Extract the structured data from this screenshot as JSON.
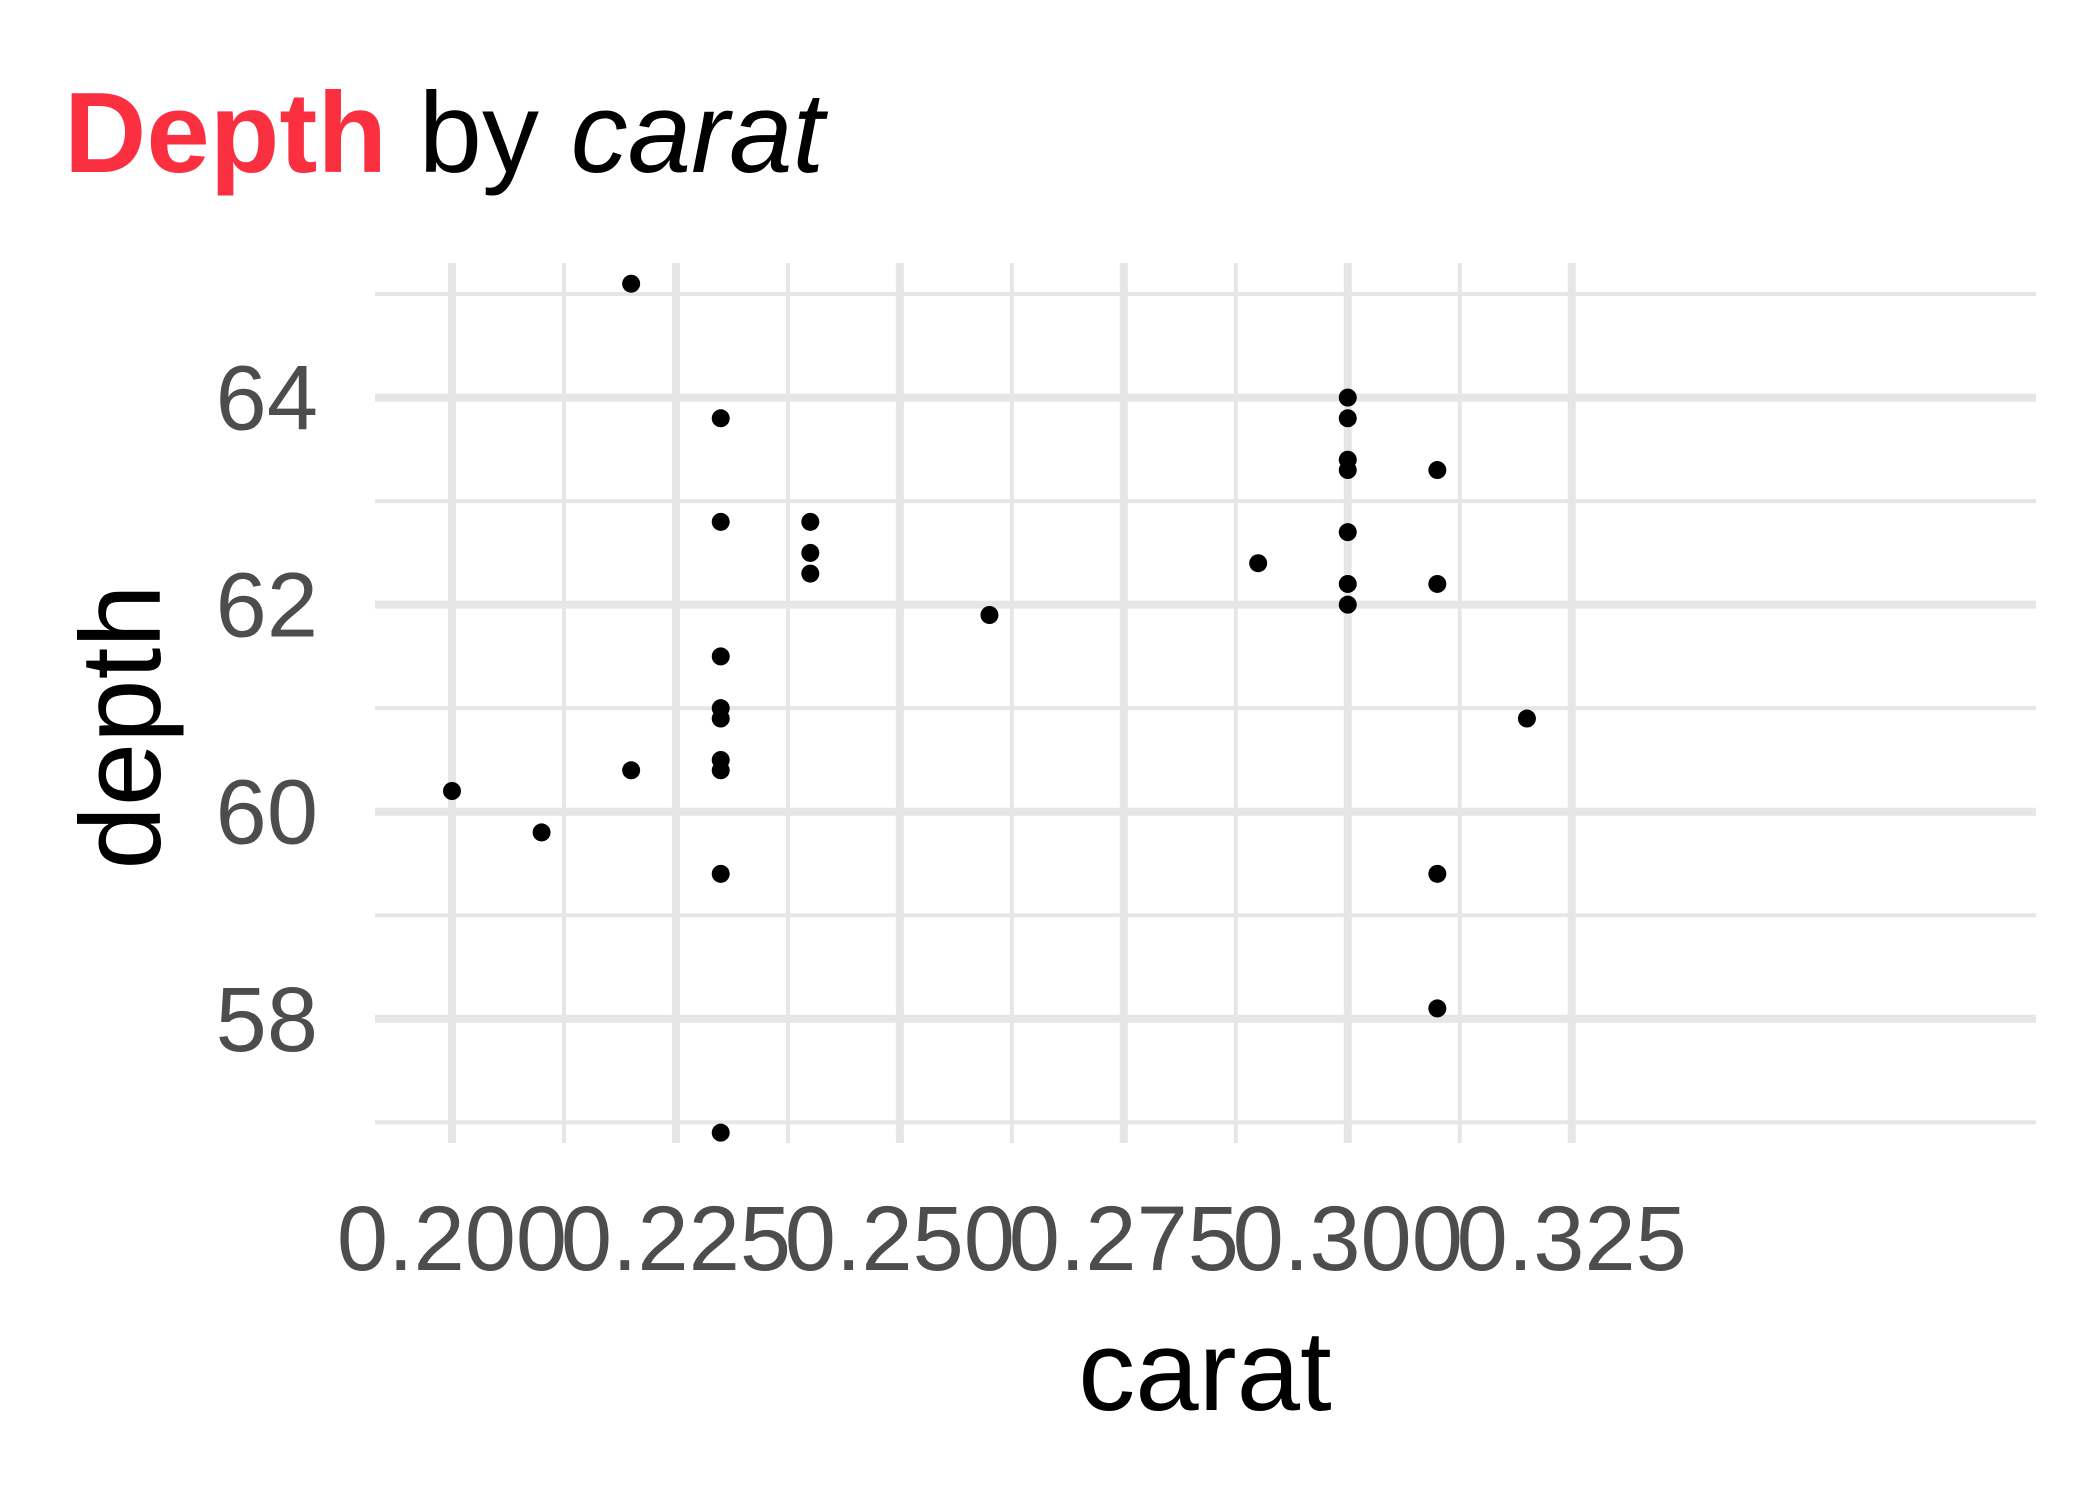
{
  "chart_data": {
    "type": "scatter",
    "title": {
      "part1": "Depth",
      "part2": " by ",
      "part3": "carat",
      "part1_color": "#fa3041"
    },
    "xlabel": "carat",
    "ylabel": "depth",
    "xlim": [
      0.1975,
      0.3225
    ],
    "ylim": [
      56.8,
      65.3
    ],
    "x_ticks": [
      0.2,
      0.225,
      0.25,
      0.275,
      0.3,
      0.325
    ],
    "x_tick_labels": [
      "0.200",
      "0.225",
      "0.250",
      "0.275",
      "0.300",
      "0.325"
    ],
    "y_ticks": [
      58,
      60,
      62,
      64
    ],
    "y_tick_labels": [
      "58",
      "60",
      "62",
      "64"
    ],
    "grid": true,
    "theme": "minimal",
    "colors": {
      "points": "#000000",
      "grid": "#e6e6e6",
      "tick_text": "#4d4d4d"
    },
    "points": [
      {
        "x": 0.2,
        "y": 60.2
      },
      {
        "x": 0.21,
        "y": 59.8
      },
      {
        "x": 0.22,
        "y": 65.1
      },
      {
        "x": 0.22,
        "y": 60.4
      },
      {
        "x": 0.23,
        "y": 63.8
      },
      {
        "x": 0.23,
        "y": 62.8
      },
      {
        "x": 0.23,
        "y": 61.5
      },
      {
        "x": 0.23,
        "y": 61.0
      },
      {
        "x": 0.23,
        "y": 60.9
      },
      {
        "x": 0.23,
        "y": 60.5
      },
      {
        "x": 0.23,
        "y": 60.4
      },
      {
        "x": 0.23,
        "y": 59.4
      },
      {
        "x": 0.23,
        "y": 56.9
      },
      {
        "x": 0.24,
        "y": 62.8
      },
      {
        "x": 0.24,
        "y": 62.5
      },
      {
        "x": 0.24,
        "y": 62.3
      },
      {
        "x": 0.26,
        "y": 61.9
      },
      {
        "x": 0.29,
        "y": 62.4
      },
      {
        "x": 0.3,
        "y": 64.0
      },
      {
        "x": 0.3,
        "y": 63.8
      },
      {
        "x": 0.3,
        "y": 63.4
      },
      {
        "x": 0.3,
        "y": 63.3
      },
      {
        "x": 0.3,
        "y": 62.7
      },
      {
        "x": 0.3,
        "y": 62.2
      },
      {
        "x": 0.3,
        "y": 62.0
      },
      {
        "x": 0.31,
        "y": 63.3
      },
      {
        "x": 0.31,
        "y": 62.2
      },
      {
        "x": 0.31,
        "y": 59.4
      },
      {
        "x": 0.31,
        "y": 58.1
      },
      {
        "x": 0.32,
        "y": 60.9
      }
    ]
  }
}
